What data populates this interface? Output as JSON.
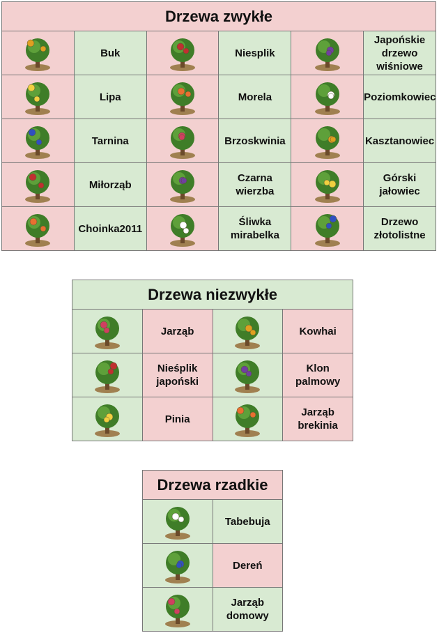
{
  "tables": [
    {
      "title": "Drzewa zwykłe",
      "rows": [
        [
          "Buk",
          "Niesplik",
          "Japońskie drzewo wiśniowe"
        ],
        [
          "Lipa",
          "Morela",
          "Poziomkowiec"
        ],
        [
          "Tarnina",
          "Brzoskwinia",
          "Kasztanowiec"
        ],
        [
          "Miłorząb",
          "Czarna wierzba",
          "Górski jałowiec"
        ],
        [
          "Choinka2011",
          "Śliwka mirabelka",
          "Drzewo złotolistne"
        ]
      ]
    },
    {
      "title": "Drzewa niezwykłe",
      "rows": [
        [
          "Jarząb",
          "Kowhai"
        ],
        [
          "Nieśplik japoński",
          "Klon palmowy"
        ],
        [
          "Pinia",
          "Jarząb brekinia"
        ]
      ]
    },
    {
      "title": "Drzewa rzadkie",
      "rows": [
        [
          "Tabebuja"
        ],
        [
          "Dereń"
        ],
        [
          "Jarząb domowy"
        ]
      ]
    }
  ]
}
